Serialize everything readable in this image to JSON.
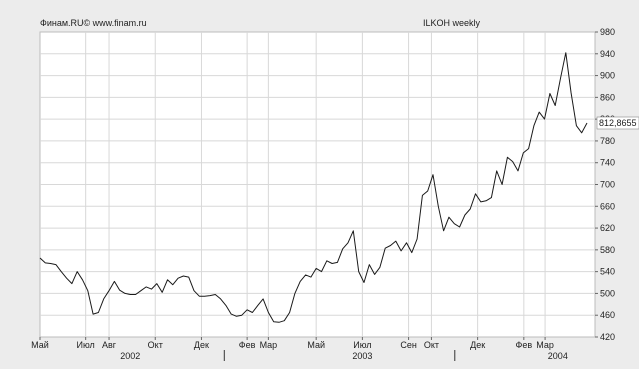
{
  "header": {
    "source_label": "Финам.RU© www.finam.ru",
    "chart_title": "ILKOH weekly"
  },
  "last_value_label": "812,8655",
  "colors": {
    "background": "#ececec",
    "plot": "#ffffff",
    "grid": "#d8d8d8",
    "line": "#1a1a1a",
    "text": "#222222"
  },
  "chart_data": {
    "type": "line",
    "title": "ILKOH weekly",
    "xlabel": "",
    "ylabel": "",
    "ylim": [
      420,
      980
    ],
    "y_ticks": [
      420,
      460,
      500,
      540,
      580,
      620,
      660,
      700,
      740,
      780,
      820,
      860,
      900,
      940,
      980
    ],
    "y_axis_position": "right",
    "grid": true,
    "x_ticks": [
      {
        "label": "Май",
        "x": 0
      },
      {
        "label": "Июл",
        "x": 8.6
      },
      {
        "label": "Авг",
        "x": 13
      },
      {
        "label": "Окт",
        "x": 21.7
      },
      {
        "label": "Дек",
        "x": 30.4
      },
      {
        "label": "Фев",
        "x": 39
      },
      {
        "label": "Мар",
        "x": 43
      },
      {
        "label": "Май",
        "x": 52
      },
      {
        "label": "Июл",
        "x": 60.7
      },
      {
        "label": "Сен",
        "x": 69.4
      },
      {
        "label": "Окт",
        "x": 73.7
      },
      {
        "label": "Дек",
        "x": 82.4
      },
      {
        "label": "Фев",
        "x": 91.1
      },
      {
        "label": "Мар",
        "x": 95.1
      }
    ],
    "year_labels": [
      {
        "label": "2002",
        "x": 17
      },
      {
        "label": "2003",
        "x": 60.7
      },
      {
        "label": "2004",
        "x": 97.5
      }
    ],
    "year_separators": [
      34.7,
      78.1
    ],
    "series": [
      {
        "values": [
          [
            0,
            565
          ],
          [
            1,
            556
          ],
          [
            2,
            555
          ],
          [
            3,
            553
          ],
          [
            4,
            540
          ],
          [
            5,
            528
          ],
          [
            6,
            518
          ],
          [
            7,
            540
          ],
          [
            8,
            525
          ],
          [
            9,
            505
          ],
          [
            10,
            462
          ],
          [
            11,
            465
          ],
          [
            12,
            490
          ],
          [
            13,
            505
          ],
          [
            14,
            522
          ],
          [
            15,
            506
          ],
          [
            16,
            500
          ],
          [
            17,
            498
          ],
          [
            18,
            498
          ],
          [
            19,
            505
          ],
          [
            20,
            512
          ],
          [
            21,
            508
          ],
          [
            22,
            518
          ],
          [
            23,
            502
          ],
          [
            24,
            525
          ],
          [
            25,
            516
          ],
          [
            26,
            528
          ],
          [
            27,
            532
          ],
          [
            28,
            530
          ],
          [
            29,
            505
          ],
          [
            30,
            495
          ],
          [
            31,
            495
          ],
          [
            32,
            496
          ],
          [
            33,
            498
          ],
          [
            34,
            490
          ],
          [
            35,
            478
          ],
          [
            36,
            462
          ],
          [
            37,
            458
          ],
          [
            38,
            460
          ],
          [
            39,
            470
          ],
          [
            40,
            465
          ],
          [
            41,
            478
          ],
          [
            42,
            490
          ],
          [
            43,
            465
          ],
          [
            44,
            448
          ],
          [
            45,
            447
          ],
          [
            46,
            450
          ],
          [
            47,
            465
          ],
          [
            48,
            500
          ],
          [
            49,
            522
          ],
          [
            50,
            534
          ],
          [
            51,
            530
          ],
          [
            52,
            546
          ],
          [
            53,
            540
          ],
          [
            54,
            560
          ],
          [
            55,
            555
          ],
          [
            56,
            557
          ],
          [
            57,
            582
          ],
          [
            58,
            593
          ],
          [
            59,
            615
          ],
          [
            60,
            540
          ],
          [
            61,
            520
          ],
          [
            62,
            553
          ],
          [
            63,
            535
          ],
          [
            64,
            548
          ],
          [
            65,
            583
          ],
          [
            66,
            588
          ],
          [
            67,
            596
          ],
          [
            68,
            578
          ],
          [
            69,
            593
          ],
          [
            70,
            575
          ],
          [
            71,
            600
          ],
          [
            72,
            680
          ],
          [
            73,
            688
          ],
          [
            74,
            718
          ],
          [
            75,
            660
          ],
          [
            76,
            615
          ],
          [
            77,
            640
          ],
          [
            78,
            628
          ],
          [
            79,
            622
          ],
          [
            80,
            644
          ],
          [
            81,
            655
          ],
          [
            82,
            683
          ],
          [
            83,
            668
          ],
          [
            84,
            670
          ],
          [
            85,
            676
          ],
          [
            86,
            725
          ],
          [
            87,
            700
          ],
          [
            88,
            750
          ],
          [
            89,
            742
          ],
          [
            90,
            725
          ],
          [
            91,
            758
          ],
          [
            92,
            766
          ],
          [
            93,
            808
          ],
          [
            94,
            833
          ],
          [
            95,
            820
          ],
          [
            96,
            867
          ],
          [
            97,
            845
          ],
          [
            98,
            895
          ],
          [
            99,
            942
          ],
          [
            100,
            868
          ],
          [
            101,
            808
          ],
          [
            102,
            795
          ],
          [
            103,
            812.87
          ]
        ]
      }
    ]
  }
}
